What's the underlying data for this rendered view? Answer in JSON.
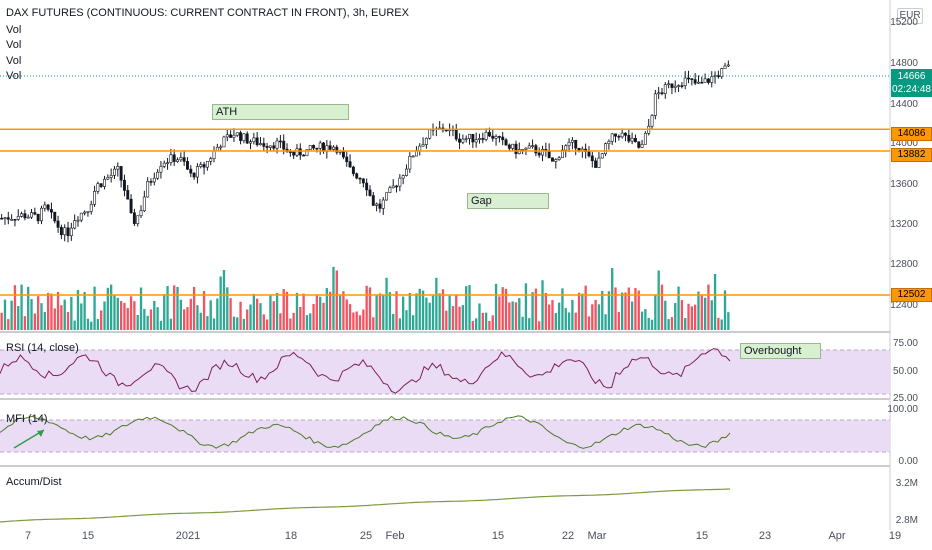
{
  "header": {
    "title": "DAX FUTURES (CONTINUOUS: CURRENT CONTRACT IN FRONT), 3h, EUREX",
    "vol_labels": [
      "Vol",
      "Vol",
      "Vol",
      "Vol"
    ],
    "currency": "EUR"
  },
  "price_axis": {
    "ticks": [
      "15200",
      "14800",
      "14400",
      "14000",
      "13600",
      "13200",
      "12800",
      "12400"
    ],
    "last_price": "14666",
    "countdown": "02:24:48",
    "levels": [
      {
        "value": "14086"
      },
      {
        "value": "13882"
      },
      {
        "value": "12502"
      }
    ]
  },
  "annotations": {
    "ath": "ATH",
    "gap": "Gap",
    "overbought": "Overbought"
  },
  "rsi": {
    "label": "RSI (14, close)",
    "ticks": [
      "75.00",
      "50.00",
      "25.00"
    ]
  },
  "mfi": {
    "label": "MFI (14)",
    "ticks": [
      "100.00",
      "0.00"
    ]
  },
  "accum": {
    "label": "Accum/Dist",
    "ticks": [
      "3.2M",
      "2.8M"
    ]
  },
  "time_axis": {
    "labels": [
      "7",
      "15",
      "2021",
      "18",
      "25",
      "Feb",
      "15",
      "22",
      "Mar",
      "15",
      "23",
      "Apr",
      "19"
    ]
  },
  "colors": {
    "up": "#089981",
    "down": "#f23645",
    "level": "#ff9800",
    "rsi_line": "#7e1f5c",
    "mfi_line": "#4f7a28",
    "ad_line": "#7d9a3c",
    "band": "#eadcf5"
  },
  "chart_data": {
    "type": "line",
    "title": "DAX FUTURES (CONTINUOUS: CURRENT CONTRACT IN FRONT), 3h, EUREX",
    "ylim": [
      12200,
      15300
    ],
    "price_path": [
      [
        0,
        13250
      ],
      [
        0.03,
        13280
      ],
      [
        0.05,
        13260
      ],
      [
        0.06,
        13350
      ],
      [
        0.08,
        13150
      ],
      [
        0.09,
        13100
      ],
      [
        0.1,
        13250
      ],
      [
        0.12,
        13350
      ],
      [
        0.13,
        13550
      ],
      [
        0.15,
        13650
      ],
      [
        0.16,
        13700
      ],
      [
        0.17,
        13500
      ],
      [
        0.18,
        13200
      ],
      [
        0.19,
        13300
      ],
      [
        0.2,
        13550
      ],
      [
        0.22,
        13780
      ],
      [
        0.24,
        13820
      ],
      [
        0.25,
        13780
      ],
      [
        0.26,
        13650
      ],
      [
        0.28,
        13750
      ],
      [
        0.3,
        13950
      ],
      [
        0.32,
        14050
      ],
      [
        0.34,
        13980
      ],
      [
        0.36,
        13950
      ],
      [
        0.38,
        13950
      ],
      [
        0.4,
        13850
      ],
      [
        0.42,
        13880
      ],
      [
        0.44,
        13920
      ],
      [
        0.46,
        13930
      ],
      [
        0.47,
        13800
      ],
      [
        0.48,
        13700
      ],
      [
        0.5,
        13600
      ],
      [
        0.51,
        13400
      ],
      [
        0.52,
        13350
      ],
      [
        0.53,
        13450
      ],
      [
        0.55,
        13650
      ],
      [
        0.57,
        13900
      ],
      [
        0.59,
        14050
      ],
      [
        0.61,
        14100
      ],
      [
        0.63,
        14000
      ],
      [
        0.65,
        14000
      ],
      [
        0.67,
        14050
      ],
      [
        0.69,
        13950
      ],
      [
        0.71,
        13880
      ],
      [
        0.73,
        13900
      ],
      [
        0.75,
        13850
      ],
      [
        0.76,
        13750
      ],
      [
        0.77,
        13900
      ],
      [
        0.79,
        13950
      ],
      [
        0.81,
        13800
      ],
      [
        0.82,
        13750
      ],
      [
        0.83,
        13900
      ],
      [
        0.84,
        14000
      ],
      [
        0.85,
        14050
      ],
      [
        0.86,
        14000
      ],
      [
        0.87,
        13950
      ],
      [
        0.88,
        13900
      ],
      [
        0.89,
        14100
      ],
      [
        0.9,
        14400
      ],
      [
        0.92,
        14500
      ],
      [
        0.94,
        14550
      ],
      [
        0.96,
        14500
      ],
      [
        0.98,
        14580
      ],
      [
        1.0,
        14666
      ]
    ],
    "levels": [
      14086,
      13882,
      12502
    ],
    "last": 14666,
    "rsi_ylim": [
      25,
      75
    ],
    "mfi_ylim": [
      0,
      100
    ],
    "ad_ylim": [
      2.8,
      3.2
    ]
  }
}
